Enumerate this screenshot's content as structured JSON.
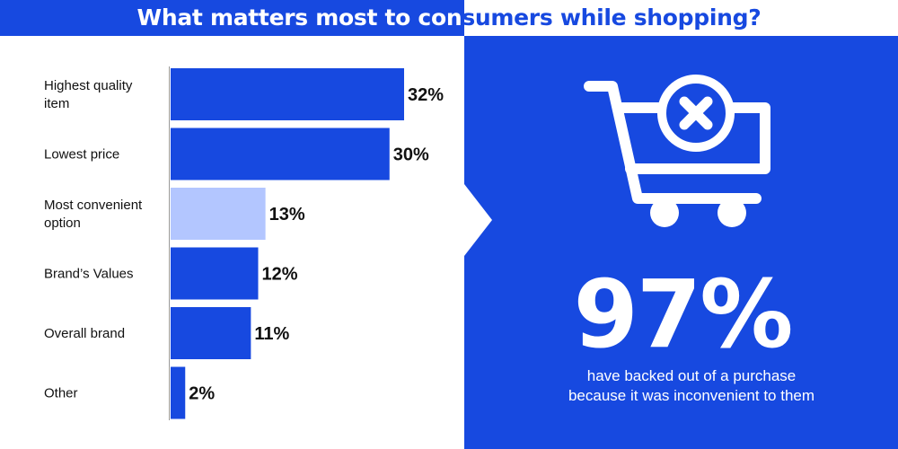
{
  "title_part1": "What matters most to con",
  "title_part2": "sumers while shopping?",
  "colors": {
    "brand_blue": "#1749e0",
    "bar_blue": "#1749e0",
    "bar_highlight": "#b3c6ff",
    "white": "#ffffff",
    "text": "#111111"
  },
  "icon": "shopping-cart-with-x-icon",
  "stat": {
    "value": "97%",
    "caption_line1": "have backed out of a purchase",
    "caption_line2": "because it was inconvenient to them"
  },
  "chart_data": {
    "type": "bar",
    "orientation": "horizontal",
    "categories": [
      [
        "Highest quality",
        "item"
      ],
      [
        "Lowest price"
      ],
      [
        "Most convenient",
        "option"
      ],
      [
        "Brand’s Values"
      ],
      [
        "Overall brand"
      ],
      [
        "Other"
      ]
    ],
    "values": [
      32,
      30,
      13,
      12,
      11,
      2
    ],
    "labels": [
      "32%",
      "30%",
      "13%",
      "12%",
      "11%",
      "2%"
    ],
    "highlight_index": 2,
    "xlim": [
      0,
      32
    ],
    "grid": false,
    "legend": "none"
  }
}
